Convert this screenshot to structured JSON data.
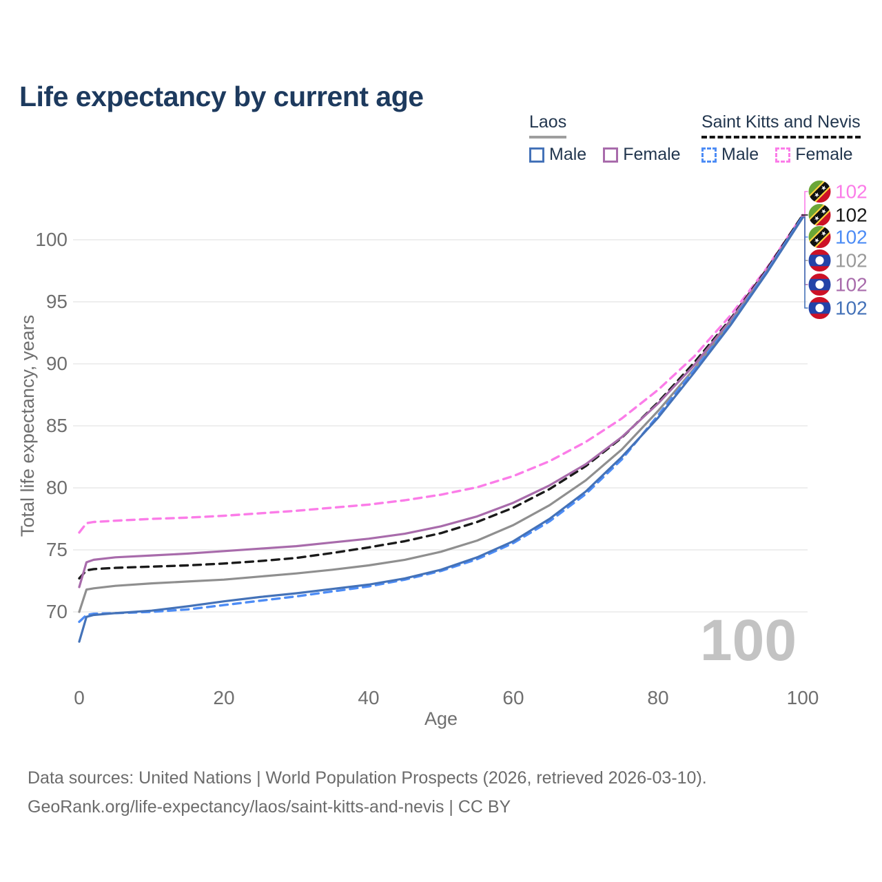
{
  "title": "Life expectancy by current age",
  "legend": {
    "groups": [
      {
        "label": "Laos",
        "line_style": "solid",
        "underline_color": "#9e9e9e",
        "items": [
          {
            "label": "Male",
            "color": "#4472b8"
          },
          {
            "label": "Female",
            "color": "#a86bab"
          }
        ]
      },
      {
        "label": "Saint Kitts and Nevis",
        "line_style": "dashed",
        "underline_color": "#141414",
        "items": [
          {
            "label": "Male",
            "color": "#4d8cf5"
          },
          {
            "label": "Female",
            "color": "#fb7ce8"
          }
        ]
      }
    ]
  },
  "chart_data": {
    "type": "line",
    "title": "Life expectancy by current age",
    "xlabel": "Age",
    "ylabel": "Total life expectancy, years",
    "xlim": [
      0,
      100
    ],
    "ylim": [
      67,
      103
    ],
    "xticks": [
      0,
      20,
      40,
      60,
      80,
      100
    ],
    "yticks": [
      70,
      75,
      80,
      85,
      90,
      95,
      100
    ],
    "grid": "horizontal",
    "legend_position": "top-right",
    "watermark": "100",
    "x": [
      0,
      1,
      2,
      5,
      10,
      15,
      20,
      25,
      30,
      35,
      40,
      45,
      50,
      55,
      60,
      65,
      70,
      75,
      80,
      85,
      90,
      95,
      100
    ],
    "series": [
      {
        "name": "Saint Kitts and Nevis Female",
        "country": "Saint Kitts and Nevis",
        "sex": "Female",
        "color": "#fb7ce8",
        "dashed": true,
        "values": [
          76.4,
          77.15,
          77.25,
          77.35,
          77.5,
          77.6,
          77.75,
          77.95,
          78.15,
          78.4,
          78.65,
          79.0,
          79.45,
          80.05,
          80.95,
          82.15,
          83.7,
          85.6,
          87.9,
          90.6,
          93.9,
          97.7,
          102.0
        ]
      },
      {
        "name": "Saint Kitts and Nevis Both sexes",
        "country": "Saint Kitts and Nevis",
        "sex": "Both",
        "color": "#1a1a1a",
        "dashed": true,
        "values": [
          72.7,
          73.35,
          73.45,
          73.55,
          73.65,
          73.75,
          73.9,
          74.1,
          74.35,
          74.75,
          75.2,
          75.7,
          76.35,
          77.25,
          78.4,
          79.9,
          81.75,
          84.05,
          86.9,
          90.1,
          93.6,
          97.6,
          102.0
        ]
      },
      {
        "name": "Laos Female",
        "country": "Laos",
        "sex": "Female",
        "color": "#a86bab",
        "dashed": false,
        "values": [
          72.0,
          74.0,
          74.2,
          74.4,
          74.55,
          74.7,
          74.9,
          75.1,
          75.3,
          75.6,
          75.9,
          76.3,
          76.9,
          77.7,
          78.8,
          80.2,
          81.9,
          84.1,
          86.8,
          89.9,
          93.5,
          97.5,
          101.9
        ]
      },
      {
        "name": "Laos Both sexes",
        "country": "Laos",
        "sex": "Both",
        "color": "#8f8f8f",
        "dashed": false,
        "values": [
          70.0,
          71.8,
          71.9,
          72.1,
          72.3,
          72.45,
          72.6,
          72.85,
          73.1,
          73.4,
          73.75,
          74.2,
          74.85,
          75.75,
          77.0,
          78.6,
          80.6,
          83.1,
          86.2,
          89.6,
          93.3,
          97.4,
          101.8
        ]
      },
      {
        "name": "Saint Kitts and Nevis Male",
        "country": "Saint Kitts and Nevis",
        "sex": "Male",
        "color": "#4d8cf5",
        "dashed": true,
        "values": [
          69.2,
          69.75,
          69.85,
          69.9,
          70.0,
          70.2,
          70.55,
          70.9,
          71.25,
          71.65,
          72.05,
          72.6,
          73.3,
          74.25,
          75.55,
          77.3,
          79.5,
          82.3,
          85.85,
          89.5,
          93.2,
          97.4,
          101.9
        ]
      },
      {
        "name": "Laos Male",
        "country": "Laos",
        "sex": "Male",
        "color": "#4472b8",
        "dashed": false,
        "values": [
          67.6,
          69.6,
          69.75,
          69.9,
          70.1,
          70.45,
          70.85,
          71.2,
          71.5,
          71.85,
          72.2,
          72.7,
          73.4,
          74.4,
          75.7,
          77.5,
          79.7,
          82.5,
          85.65,
          89.3,
          93.1,
          97.3,
          101.8
        ]
      }
    ],
    "end_labels": [
      {
        "value": "102",
        "flag": "kn",
        "country": "Saint Kitts and Nevis",
        "color": "#fb7ce8",
        "series_index": 0
      },
      {
        "value": "102",
        "flag": "kn",
        "country": "Saint Kitts and Nevis",
        "color": "#1a1a1a",
        "series_index": 1
      },
      {
        "value": "102",
        "flag": "kn",
        "country": "Saint Kitts and Nevis",
        "color": "#4d8cf5",
        "series_index": 4
      },
      {
        "value": "102",
        "flag": "la",
        "country": "Laos",
        "color": "#999999",
        "series_index": 3
      },
      {
        "value": "102",
        "flag": "la",
        "country": "Laos",
        "color": "#a86bab",
        "series_index": 2
      },
      {
        "value": "102",
        "flag": "la",
        "country": "Laos",
        "color": "#4472b8",
        "series_index": 5
      }
    ]
  },
  "footer": {
    "line1": "Data sources: United Nations | World Population Prospects (2026, retrieved 2026-03-10).",
    "line2": "GeoRank.org/life-expectancy/laos/saint-kitts-and-nevis | CC BY"
  }
}
